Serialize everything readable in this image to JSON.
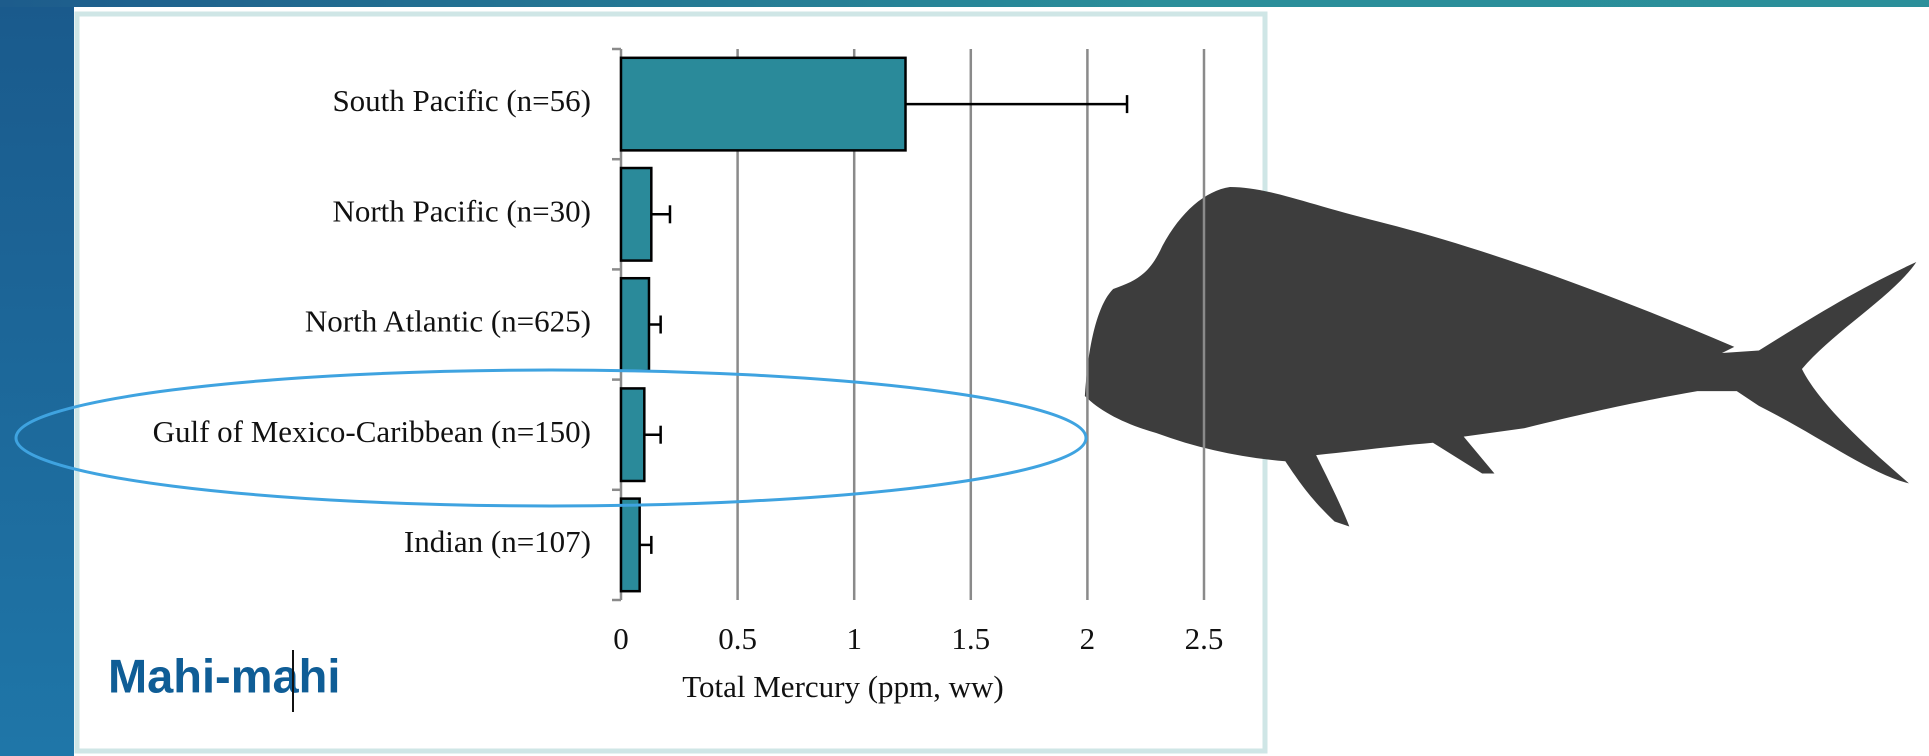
{
  "chart_data": {
    "type": "bar",
    "orientation": "horizontal",
    "annotation": "Mahi-mahi",
    "xlabel": "Total Mercury (ppm, ww)",
    "categories": [
      "South Pacific (n=56)",
      "North Pacific (n=30)",
      "North Atlantic (n=625)",
      "Gulf of Mexico-Caribbean (n=150)",
      "Indian (n=107)"
    ],
    "values": [
      1.22,
      0.13,
      0.12,
      0.1,
      0.08
    ],
    "errors": [
      0.95,
      0.08,
      0.05,
      0.07,
      0.05
    ],
    "color": "#2a8a9a",
    "xlim": [
      0,
      2.5
    ],
    "xticks": [
      0,
      0.5,
      1,
      1.5,
      2,
      2.5
    ],
    "grid": true
  }
}
